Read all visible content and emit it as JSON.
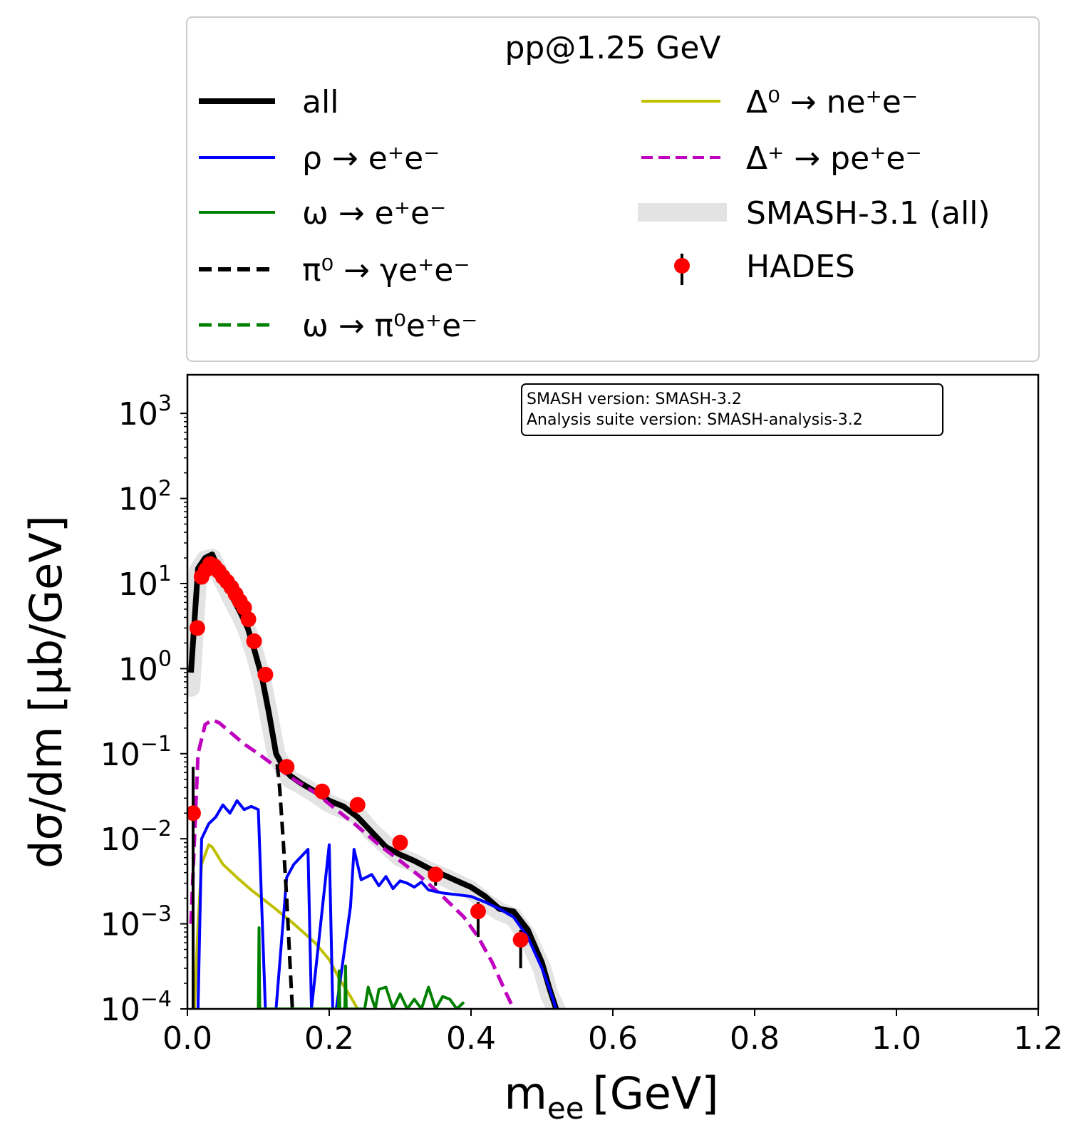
{
  "chart_data": {
    "type": "line",
    "legend_title": "pp@1.25 GeV",
    "legend_placement": "top, above plot",
    "xlabel": "m",
    "xlabel_sub": "ee",
    "xlabel_unit": "[GeV]",
    "ylabel": "dσ/dm [μb/GeV]",
    "xlim": [
      0.0,
      1.2
    ],
    "ylim": [
      0.0001,
      2000
    ],
    "yscale": "log",
    "grid": false,
    "x_ticks": [
      "0.0",
      "0.2",
      "0.4",
      "0.6",
      "0.8",
      "1.0",
      "1.2"
    ],
    "x_tick_values": [
      0.0,
      0.2,
      0.4,
      0.6,
      0.8,
      1.0,
      1.2
    ],
    "y_ticks": [
      {
        "value": 0.0001,
        "base": "10",
        "exp": "−4"
      },
      {
        "value": 0.001,
        "base": "10",
        "exp": "−3"
      },
      {
        "value": 0.01,
        "base": "10",
        "exp": "−2"
      },
      {
        "value": 0.1,
        "base": "10",
        "exp": "−1"
      },
      {
        "value": 1,
        "base": "10",
        "exp": "0"
      },
      {
        "value": 10,
        "base": "10",
        "exp": "1"
      },
      {
        "value": 100,
        "base": "10",
        "exp": "2"
      },
      {
        "value": 1000,
        "base": "10",
        "exp": "3"
      }
    ],
    "annotation": [
      "SMASH version: SMASH-3.2",
      "Analysis suite version: SMASH-analysis-3.2"
    ],
    "series": [
      {
        "name": "all",
        "color": "#000000",
        "style": "solid",
        "x": [
          0.005,
          0.015,
          0.025,
          0.035,
          0.045,
          0.055,
          0.065,
          0.075,
          0.085,
          0.095,
          0.105,
          0.115,
          0.125,
          0.135,
          0.145,
          0.16,
          0.18,
          0.2,
          0.22,
          0.24,
          0.26,
          0.28,
          0.3,
          0.32,
          0.34,
          0.36,
          0.38,
          0.4,
          0.42,
          0.44,
          0.46,
          0.48,
          0.5,
          0.51,
          0.52
        ],
        "y": [
          0.9,
          15,
          20,
          22,
          14,
          10,
          6.5,
          4.5,
          3,
          1.6,
          0.8,
          0.3,
          0.1,
          0.07,
          0.055,
          0.045,
          0.036,
          0.028,
          0.024,
          0.018,
          0.012,
          0.008,
          0.0065,
          0.0055,
          0.0045,
          0.0038,
          0.0032,
          0.0027,
          0.0021,
          0.0015,
          0.0014,
          0.00085,
          0.00035,
          0.00018,
          0.0001
        ]
      },
      {
        "name": "SMASH-3.1 (all)",
        "color": "#e3e3e3",
        "style": "band",
        "x": [
          0.005,
          0.015,
          0.025,
          0.035,
          0.045,
          0.055,
          0.065,
          0.075,
          0.085,
          0.095,
          0.105,
          0.115,
          0.125,
          0.135,
          0.145,
          0.16,
          0.18,
          0.2,
          0.22,
          0.24,
          0.26,
          0.28,
          0.3,
          0.32,
          0.34,
          0.36,
          0.38,
          0.4,
          0.42,
          0.44,
          0.46,
          0.48,
          0.5,
          0.51,
          0.52
        ],
        "y": [
          0.6,
          14,
          19,
          20,
          13,
          9,
          6,
          4.2,
          2.7,
          1.5,
          0.75,
          0.28,
          0.1,
          0.068,
          0.05,
          0.043,
          0.034,
          0.026,
          0.022,
          0.019,
          0.012,
          0.0085,
          0.006,
          0.0052,
          0.0042,
          0.0036,
          0.003,
          0.0025,
          0.0018,
          0.0014,
          0.0012,
          0.0007,
          0.0003,
          0.00015,
          0.0001
        ]
      },
      {
        "name": "ρ → e⁺e⁻",
        "color": "#0000ff",
        "style": "solid",
        "x": [
          0.015,
          0.02,
          0.03,
          0.04,
          0.05,
          0.06,
          0.07,
          0.08,
          0.09,
          0.1,
          0.11,
          0.12,
          0.125,
          0.14,
          0.15,
          0.17,
          0.175,
          0.2,
          0.205,
          0.21,
          0.23,
          0.235,
          0.245,
          0.26,
          0.27,
          0.28,
          0.29,
          0.3,
          0.31,
          0.32,
          0.33,
          0.34,
          0.36,
          0.38,
          0.4,
          0.42,
          0.44,
          0.46,
          0.48,
          0.5,
          0.51,
          0.52
        ],
        "y": [
          0.0001,
          0.01,
          0.015,
          0.018,
          0.025,
          0.02,
          0.028,
          0.022,
          0.024,
          0.022,
          0.0001,
          0.0001,
          0.0001,
          0.0035,
          0.005,
          0.0075,
          0.0001,
          0.0085,
          0.0001,
          0.0001,
          0.0016,
          0.0075,
          0.0033,
          0.0038,
          0.0028,
          0.0036,
          0.0026,
          0.0032,
          0.003,
          0.0027,
          0.0031,
          0.0025,
          0.0023,
          0.0022,
          0.0021,
          0.0018,
          0.0015,
          0.0012,
          0.0007,
          0.0003,
          0.00018,
          0.0001
        ]
      },
      {
        "name": "ω → e⁺e⁻",
        "color": "#008000",
        "style": "solid",
        "x": [
          0.1,
          0.101,
          0.102,
          0.213,
          0.214,
          0.215,
          0.222,
          0.223,
          0.224,
          0.25,
          0.255,
          0.265,
          0.27,
          0.28,
          0.29,
          0.3,
          0.31,
          0.32,
          0.33,
          0.34,
          0.35,
          0.36,
          0.37,
          0.38,
          0.39
        ],
        "y": [
          0.0001,
          0.0009,
          0.0001,
          0.0001,
          0.00028,
          0.0001,
          0.0001,
          0.00032,
          0.0001,
          0.0001,
          0.00018,
          0.0001,
          0.00017,
          0.00018,
          0.0001,
          0.00015,
          0.0001,
          0.00013,
          0.0001,
          0.00018,
          0.0001,
          0.00014,
          0.00013,
          0.0001,
          0.00012
        ]
      },
      {
        "name": "π⁰ → γe⁺e⁻",
        "color": "#000000",
        "style": "dashed",
        "x": [
          0.005,
          0.015,
          0.025,
          0.035,
          0.045,
          0.055,
          0.065,
          0.075,
          0.085,
          0.095,
          0.105,
          0.115,
          0.125,
          0.13,
          0.135,
          0.14,
          0.145,
          0.148
        ],
        "y": [
          0.9,
          15,
          20,
          22,
          14,
          10,
          6.5,
          4.5,
          3,
          1.6,
          0.8,
          0.3,
          0.1,
          0.04,
          0.01,
          0.002,
          0.0003,
          0.0001
        ]
      },
      {
        "name": "ω → π⁰e⁺e⁻",
        "color": "#008000",
        "style": "dashed",
        "x": [],
        "y": []
      },
      {
        "name": "Δ⁰ → ne⁺e⁻",
        "color": "#bfbf00",
        "style": "solid",
        "x": [
          0.01,
          0.015,
          0.02,
          0.03,
          0.035,
          0.05,
          0.07,
          0.09,
          0.12,
          0.15,
          0.18,
          0.2,
          0.215,
          0.23,
          0.24
        ],
        "y": [
          0.0001,
          0.001,
          0.005,
          0.0085,
          0.008,
          0.005,
          0.0035,
          0.0025,
          0.0016,
          0.001,
          0.0006,
          0.00038,
          0.00022,
          0.00014,
          0.0001
        ]
      },
      {
        "name": "Δ⁺ → pe⁺e⁻",
        "color": "#bf00bf",
        "style": "dashed",
        "x": [
          0.005,
          0.015,
          0.025,
          0.035,
          0.045,
          0.06,
          0.08,
          0.1,
          0.12,
          0.15,
          0.18,
          0.21,
          0.24,
          0.27,
          0.3,
          0.33,
          0.36,
          0.39,
          0.41,
          0.43,
          0.45,
          0.46
        ],
        "y": [
          0.001,
          0.1,
          0.22,
          0.25,
          0.23,
          0.18,
          0.13,
          0.1,
          0.075,
          0.05,
          0.035,
          0.022,
          0.014,
          0.0085,
          0.0055,
          0.0035,
          0.0021,
          0.0012,
          0.0007,
          0.00035,
          0.00015,
          0.0001
        ]
      },
      {
        "name": "HADES",
        "color": "#ff0000",
        "style": "points",
        "x": [
          0.008,
          0.014,
          0.02,
          0.026,
          0.032,
          0.038,
          0.044,
          0.05,
          0.056,
          0.062,
          0.068,
          0.074,
          0.08,
          0.086,
          0.094,
          0.11,
          0.14,
          0.19,
          0.24,
          0.3,
          0.35,
          0.41,
          0.47
        ],
        "y": [
          0.02,
          3,
          12,
          14.5,
          17,
          16,
          14,
          12,
          10.5,
          9,
          7.5,
          6.2,
          5.2,
          3.8,
          2.1,
          0.85,
          0.07,
          0.036,
          0.025,
          0.009,
          0.0038,
          0.0014,
          0.00065
        ],
        "yerr_low": [
          0.02,
          0,
          0,
          0,
          0,
          0,
          0,
          0,
          0,
          0,
          0,
          0,
          0,
          0,
          0,
          0,
          0.01,
          0,
          0,
          0.001,
          0.001,
          0.0007,
          0.00035
        ],
        "yerr_high": [
          0.05,
          0,
          0,
          0,
          0,
          0,
          0,
          0,
          0,
          0,
          0,
          0,
          0,
          0,
          0,
          0,
          0.01,
          0,
          0,
          0.001,
          0.0006,
          0.0004,
          0.0002
        ]
      }
    ],
    "legend_order": [
      {
        "label": "all",
        "series": 0
      },
      {
        "label": "ρ → e⁺e⁻",
        "series": 2
      },
      {
        "label": "ω → e⁺e⁻",
        "series": 3
      },
      {
        "label": "π⁰ → γe⁺e⁻",
        "series": 4
      },
      {
        "label": "ω → π⁰e⁺e⁻",
        "series": 5
      },
      {
        "label": "Δ⁰ → ne⁺e⁻",
        "series": 6
      },
      {
        "label": "Δ⁺ → pe⁺e⁻",
        "series": 7
      },
      {
        "label": "SMASH-3.1 (all)",
        "series": 1
      },
      {
        "label": "HADES",
        "series": 8
      }
    ]
  }
}
